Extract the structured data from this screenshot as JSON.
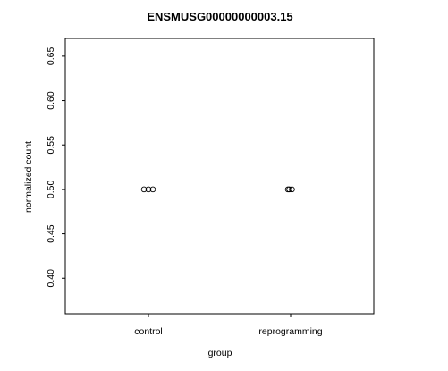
{
  "chart_data": {
    "type": "scatter",
    "title": "ENSMUSG00000000003.15",
    "xlabel": "group",
    "ylabel": "normalized count",
    "categories": [
      "control",
      "reprogramming"
    ],
    "points": [
      {
        "group": "control",
        "value": 0.5
      },
      {
        "group": "control",
        "value": 0.5
      },
      {
        "group": "control",
        "value": 0.5
      },
      {
        "group": "reprogramming",
        "value": 0.5
      },
      {
        "group": "reprogramming",
        "value": 0.5
      },
      {
        "group": "reprogramming",
        "value": 0.5
      }
    ],
    "yticks": [
      0.4,
      0.45,
      0.5,
      0.55,
      0.6,
      0.65
    ],
    "ytick_labels": [
      "0.40",
      "0.45",
      "0.50",
      "0.55",
      "0.60",
      "0.65"
    ],
    "ylim": [
      0.36,
      0.67
    ],
    "grid": false,
    "legend": "none",
    "point_color": "#000000"
  }
}
